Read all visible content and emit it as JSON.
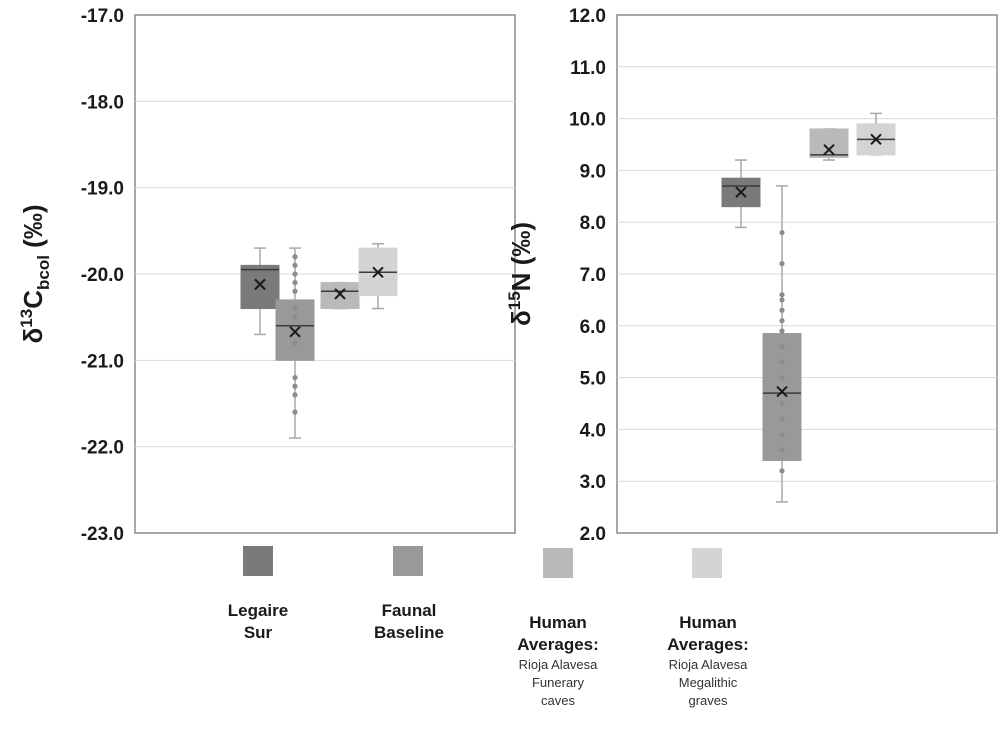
{
  "colors": {
    "legaire": "#7a7a7a",
    "faunal": "#999999",
    "funerary": "#b9b9b9",
    "megalithic": "#d4d4d4",
    "grid": "#d9d9d9",
    "whisker": "#a8a8a8",
    "point": "#8c8c8c"
  },
  "chart_data": [
    {
      "type": "box",
      "ylabel_main": "δ",
      "ylabel_sup": "13",
      "ylabel_letter": "C",
      "ylabel_sub": "bcol",
      "ylabel_unit": " (‰)",
      "ylim": [
        -23.0,
        -17.0
      ],
      "ytick_labels": [
        "-23.0",
        "-22.0",
        "-21.0",
        "-20.0",
        "-19.0",
        "-18.0",
        "-17.0"
      ],
      "yticks": [
        -23.0,
        -22.0,
        -21.0,
        -20.0,
        -19.0,
        -18.0,
        -17.0
      ],
      "grid": true,
      "series": [
        {
          "name": "Legaire Sur",
          "color_key": "legaire",
          "min": -20.7,
          "q1": -20.4,
          "median": -19.95,
          "q3": -19.9,
          "max": -19.7,
          "mean": -20.12,
          "points": []
        },
        {
          "name": "Faunal Baseline",
          "color_key": "faunal",
          "min": -21.9,
          "q1": -21.0,
          "median": -20.6,
          "q3": -20.3,
          "max": -19.7,
          "mean": -20.67,
          "points": [
            -19.8,
            -19.9,
            -20.0,
            -20.1,
            -20.2,
            -20.4,
            -20.5,
            -20.8,
            -21.2,
            -21.3,
            -21.4,
            -21.6
          ]
        },
        {
          "name": "Human Averages: Rioja Alavesa Funerary caves",
          "color_key": "funerary",
          "min": -20.4,
          "q1": -20.4,
          "median": -20.2,
          "q3": -20.1,
          "max": -20.1,
          "mean": -20.23,
          "points": []
        },
        {
          "name": "Human Averages: Rioja Alavesa Megalithic graves",
          "color_key": "megalithic",
          "min": -20.4,
          "q1": -20.25,
          "median": -19.98,
          "q3": -19.7,
          "max": -19.65,
          "mean": -19.98,
          "points": []
        }
      ]
    },
    {
      "type": "box",
      "ylabel_main": "δ",
      "ylabel_sup": "15",
      "ylabel_letter": "N",
      "ylabel_sub": "",
      "ylabel_unit": " (‰)",
      "ylim": [
        2.0,
        12.0
      ],
      "ytick_labels": [
        "2.0",
        "3.0",
        "4.0",
        "5.0",
        "6.0",
        "7.0",
        "8.0",
        "9.0",
        "10.0",
        "11.0",
        "12.0"
      ],
      "yticks": [
        2.0,
        3.0,
        4.0,
        5.0,
        6.0,
        7.0,
        8.0,
        9.0,
        10.0,
        11.0,
        12.0
      ],
      "grid": true,
      "series": [
        {
          "name": "Legaire Sur",
          "color_key": "legaire",
          "min": 7.9,
          "q1": 8.3,
          "median": 8.7,
          "q3": 8.85,
          "max": 9.2,
          "mean": 8.58,
          "points": []
        },
        {
          "name": "Faunal Baseline",
          "color_key": "faunal",
          "min": 2.6,
          "q1": 3.4,
          "median": 4.7,
          "q3": 5.85,
          "max": 8.7,
          "mean": 4.73,
          "points": [
            3.2,
            3.6,
            3.9,
            4.2,
            4.5,
            5.0,
            5.3,
            5.6,
            5.9,
            6.1,
            6.3,
            6.5,
            6.6,
            7.2,
            7.8
          ]
        },
        {
          "name": "Human Averages: Rioja Alavesa Funerary caves",
          "color_key": "funerary",
          "min": 9.2,
          "q1": 9.25,
          "median": 9.3,
          "q3": 9.8,
          "max": 9.8,
          "mean": 9.4,
          "points": []
        },
        {
          "name": "Human Averages: Rioja Alavesa Megalithic graves",
          "color_key": "megalithic",
          "min": 9.3,
          "q1": 9.3,
          "median": 9.6,
          "q3": 9.9,
          "max": 10.1,
          "mean": 9.6,
          "points": []
        }
      ]
    }
  ],
  "legend": {
    "items": [
      {
        "title": "Legaire Sur",
        "title_line1": "Legaire",
        "title_line2": "Sur",
        "sub_line1": "",
        "sub_line2": "",
        "sub_line3": "",
        "color_key": "legaire"
      },
      {
        "title": "Faunal Baseline",
        "title_line1": "Faunal",
        "title_line2": "Baseline",
        "sub_line1": "",
        "sub_line2": "",
        "sub_line3": "",
        "color_key": "faunal"
      },
      {
        "title": "Human Averages:",
        "title_line1": "Human",
        "title_line2": "Averages:",
        "sub_line1": "Rioja Alavesa",
        "sub_line2": "Funerary",
        "sub_line3": "caves",
        "color_key": "funerary"
      },
      {
        "title": "Human Averages:",
        "title_line1": "Human",
        "title_line2": "Averages:",
        "sub_line1": "Rioja Alavesa",
        "sub_line2": "Megalithic",
        "sub_line3": "graves",
        "color_key": "megalithic"
      }
    ]
  }
}
